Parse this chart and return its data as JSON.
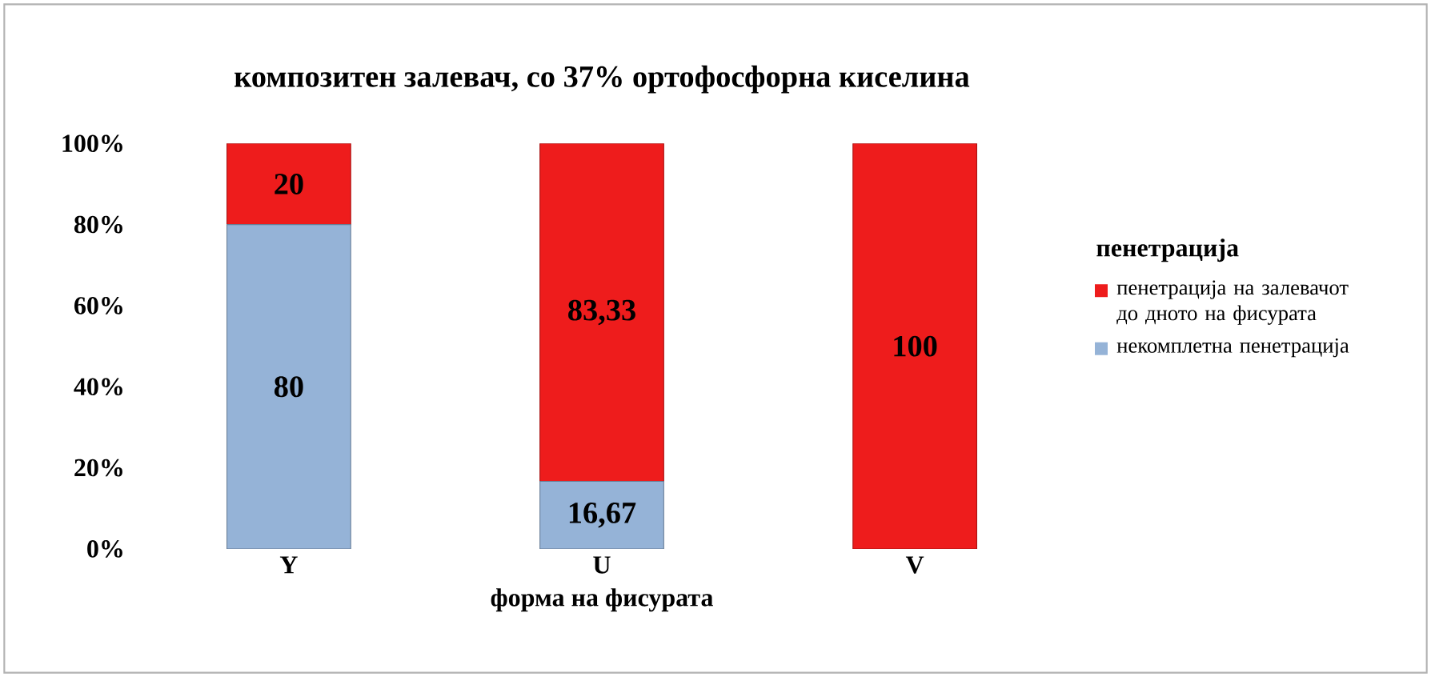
{
  "chart_data": {
    "type": "bar",
    "stacked": true,
    "title": "композитен залевач, со 37% ортофосфорна киселина",
    "xlabel": "форма на фисурата",
    "legend_title": "пенетрација",
    "legend": "right",
    "categories": [
      "Y",
      "U",
      "V"
    ],
    "ylim": [
      0,
      100
    ],
    "yticks": [
      {
        "value": 0,
        "label": "0%"
      },
      {
        "value": 20,
        "label": "20%"
      },
      {
        "value": 40,
        "label": "40%"
      },
      {
        "value": 60,
        "label": "60%"
      },
      {
        "value": 80,
        "label": "80%"
      },
      {
        "value": 100,
        "label": "100%"
      }
    ],
    "series": [
      {
        "name": "некомплетна пенетрација",
        "color": "#95b3d7",
        "values": [
          80,
          16.67,
          0
        ],
        "value_labels": [
          "80",
          "16,67",
          null
        ]
      },
      {
        "name": "пенетрација на залевачот до дното на фисурата",
        "color": "#ee1c1c",
        "values": [
          20,
          83.33,
          100
        ],
        "value_labels": [
          "20",
          "83,33",
          "100"
        ]
      }
    ]
  }
}
